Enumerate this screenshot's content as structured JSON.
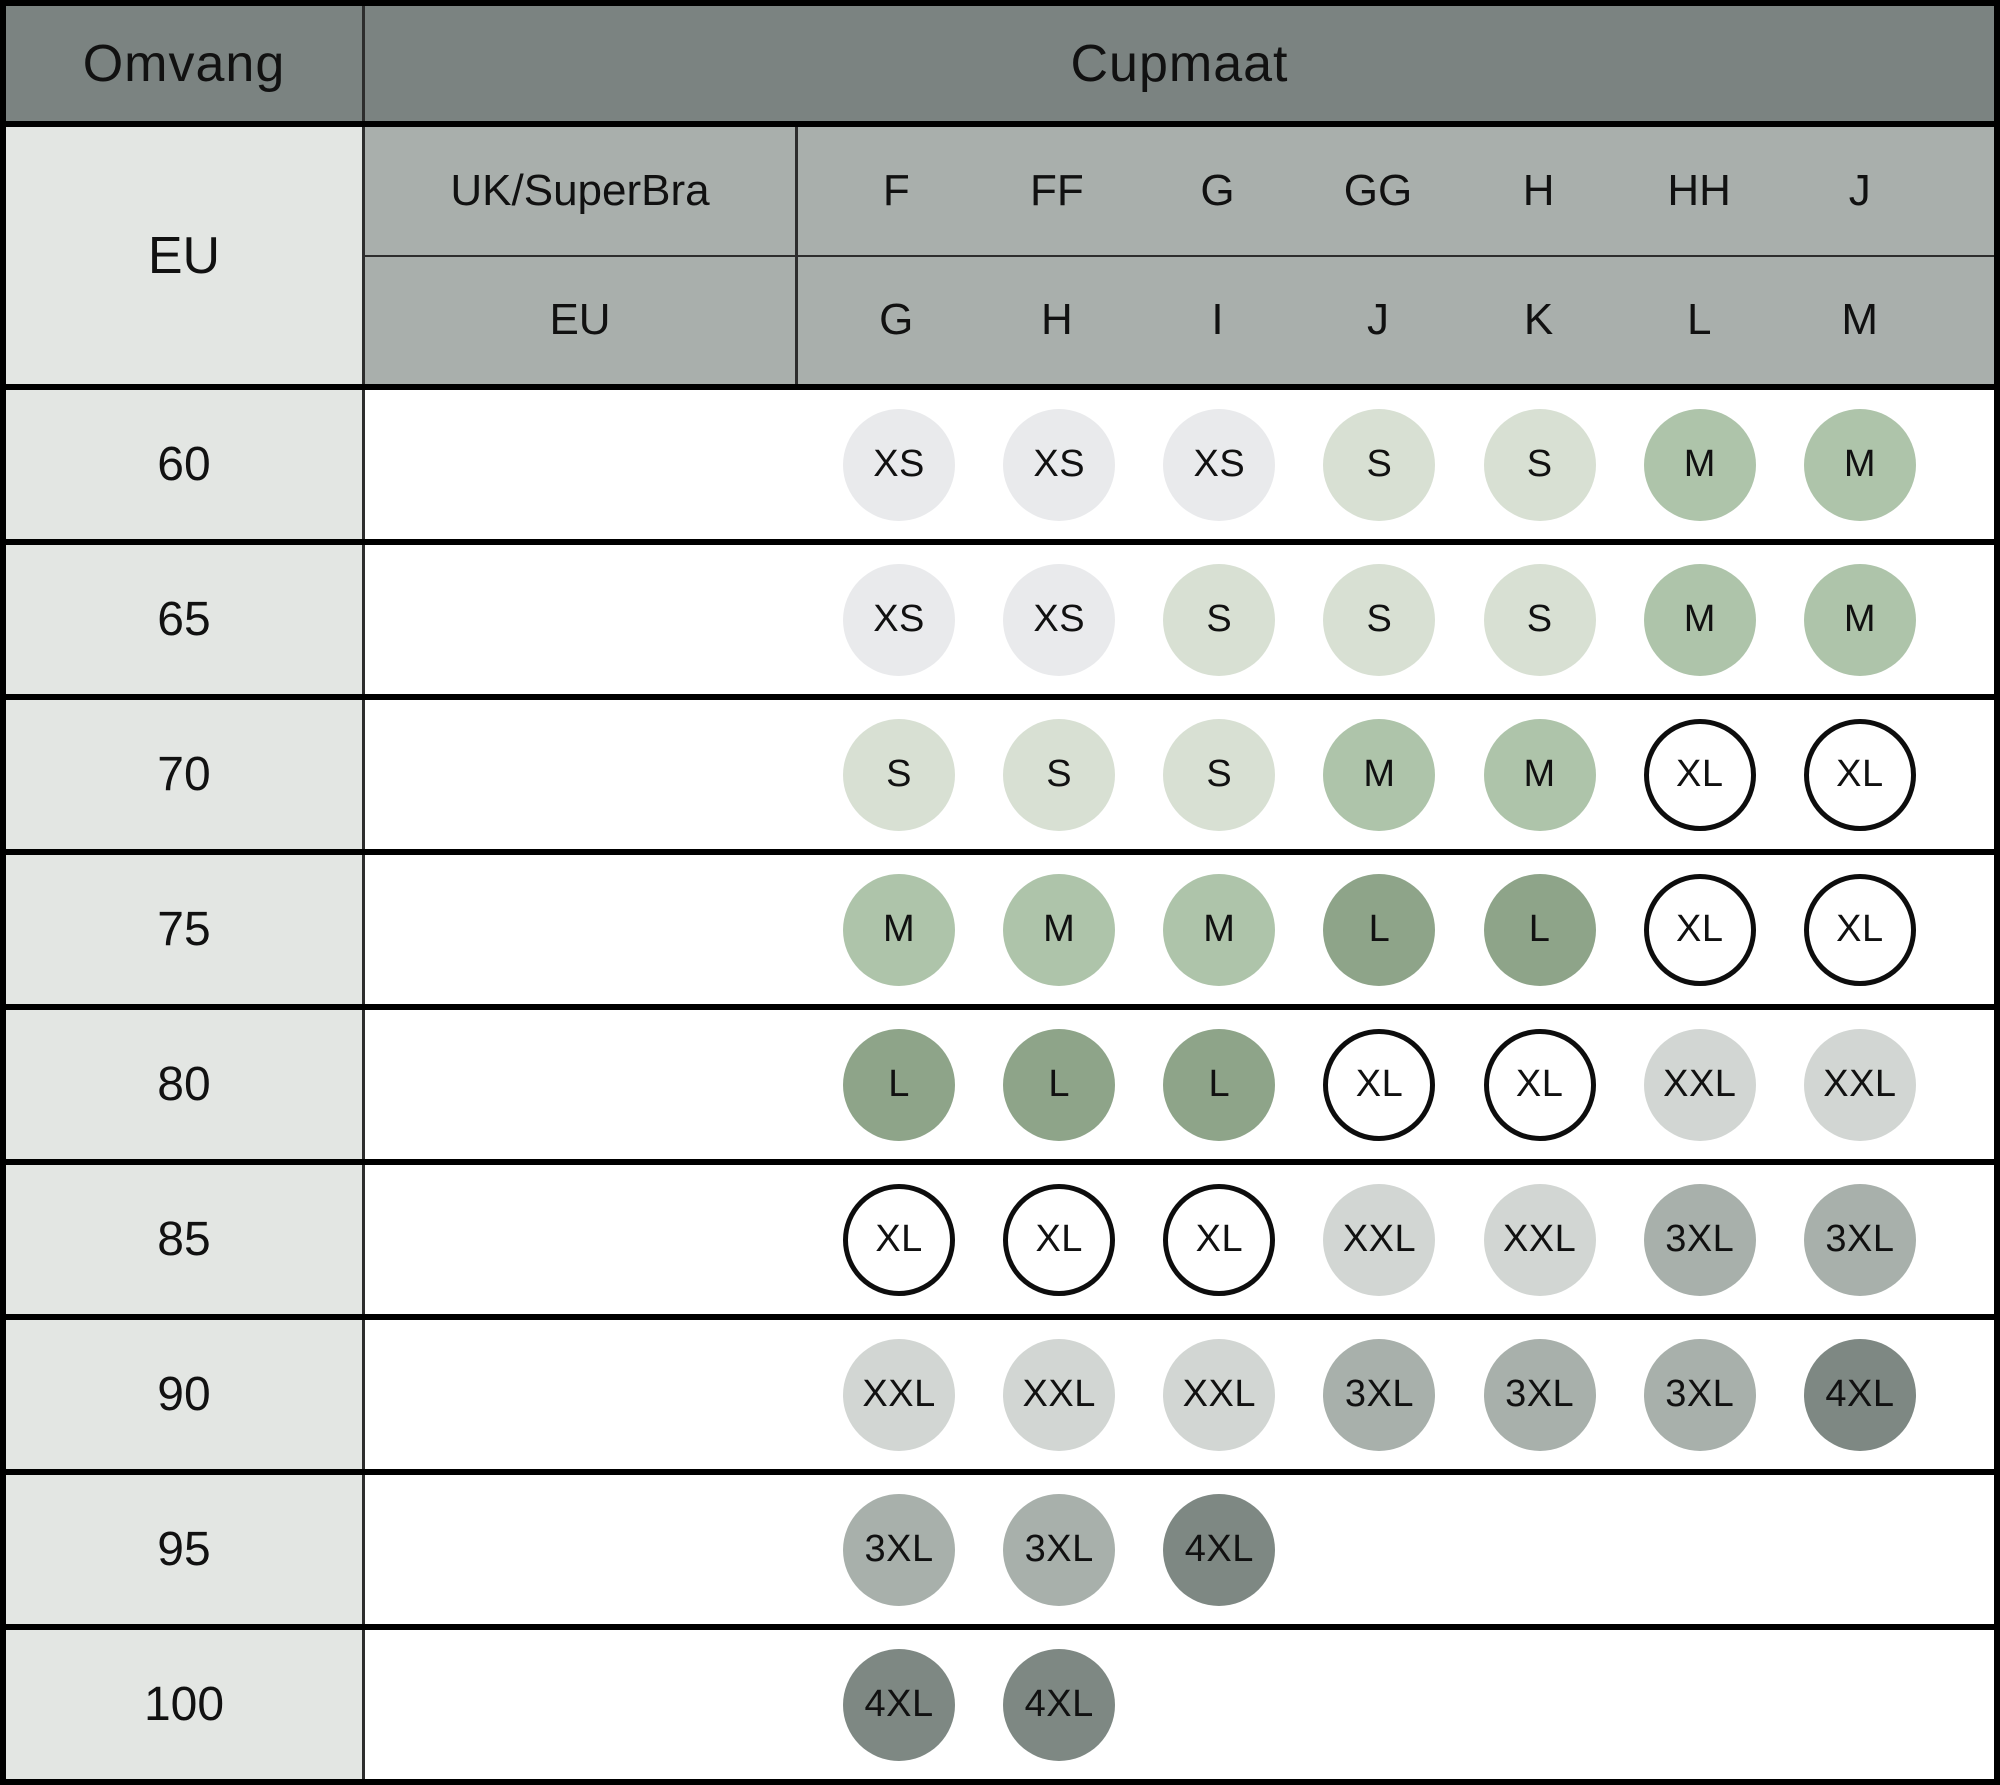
{
  "chart_data": {
    "type": "table",
    "corner_header": "Omvang",
    "main_header": "Cupmaat",
    "band_system_label": "EU",
    "cup_header_rows": [
      {
        "system": "UK/SuperBra",
        "cups": [
          "F",
          "FF",
          "G",
          "GG",
          "H",
          "HH",
          "J"
        ]
      },
      {
        "system": "EU",
        "cups": [
          "G",
          "H",
          "I",
          "J",
          "K",
          "L",
          "M"
        ]
      }
    ],
    "bands": [
      "60",
      "65",
      "70",
      "75",
      "80",
      "85",
      "90",
      "95",
      "100"
    ],
    "matrix": [
      [
        "XS",
        "XS",
        "XS",
        "S",
        "S",
        "M",
        "M"
      ],
      [
        "XS",
        "XS",
        "S",
        "S",
        "S",
        "M",
        "M"
      ],
      [
        "S",
        "S",
        "S",
        "M",
        "M",
        "XL",
        "XL"
      ],
      [
        "M",
        "M",
        "M",
        "L",
        "L",
        "XL",
        "XL"
      ],
      [
        "L",
        "L",
        "L",
        "XL",
        "XL",
        "XXL",
        "XXL"
      ],
      [
        "XL",
        "XL",
        "XL",
        "XXL",
        "XXL",
        "3XL",
        "3XL"
      ],
      [
        "XXL",
        "XXL",
        "XXL",
        "3XL",
        "3XL",
        "3XL",
        "4XL"
      ],
      [
        "3XL",
        "3XL",
        "4XL",
        null,
        null,
        null,
        null
      ],
      [
        "4XL",
        "4XL",
        null,
        null,
        null,
        null,
        null
      ]
    ],
    "size_colors": {
      "XS": "#e9eaec",
      "S": "#d8e0d3",
      "M": "#aec4aa",
      "L": "#8ea489",
      "XL": "outline",
      "XXL": "#d2d6d3",
      "3XL": "#a8b0ab",
      "4XL": "#7e8883"
    },
    "theme": {
      "header_dark": "#7b8381",
      "header_mid": "#a9afac",
      "band_column_bg": "#e3e6e3",
      "cell_bg": "#ffffff",
      "text": "#111111",
      "grid_thick": "#000000",
      "grid_thin": "#2d2d2d"
    }
  }
}
